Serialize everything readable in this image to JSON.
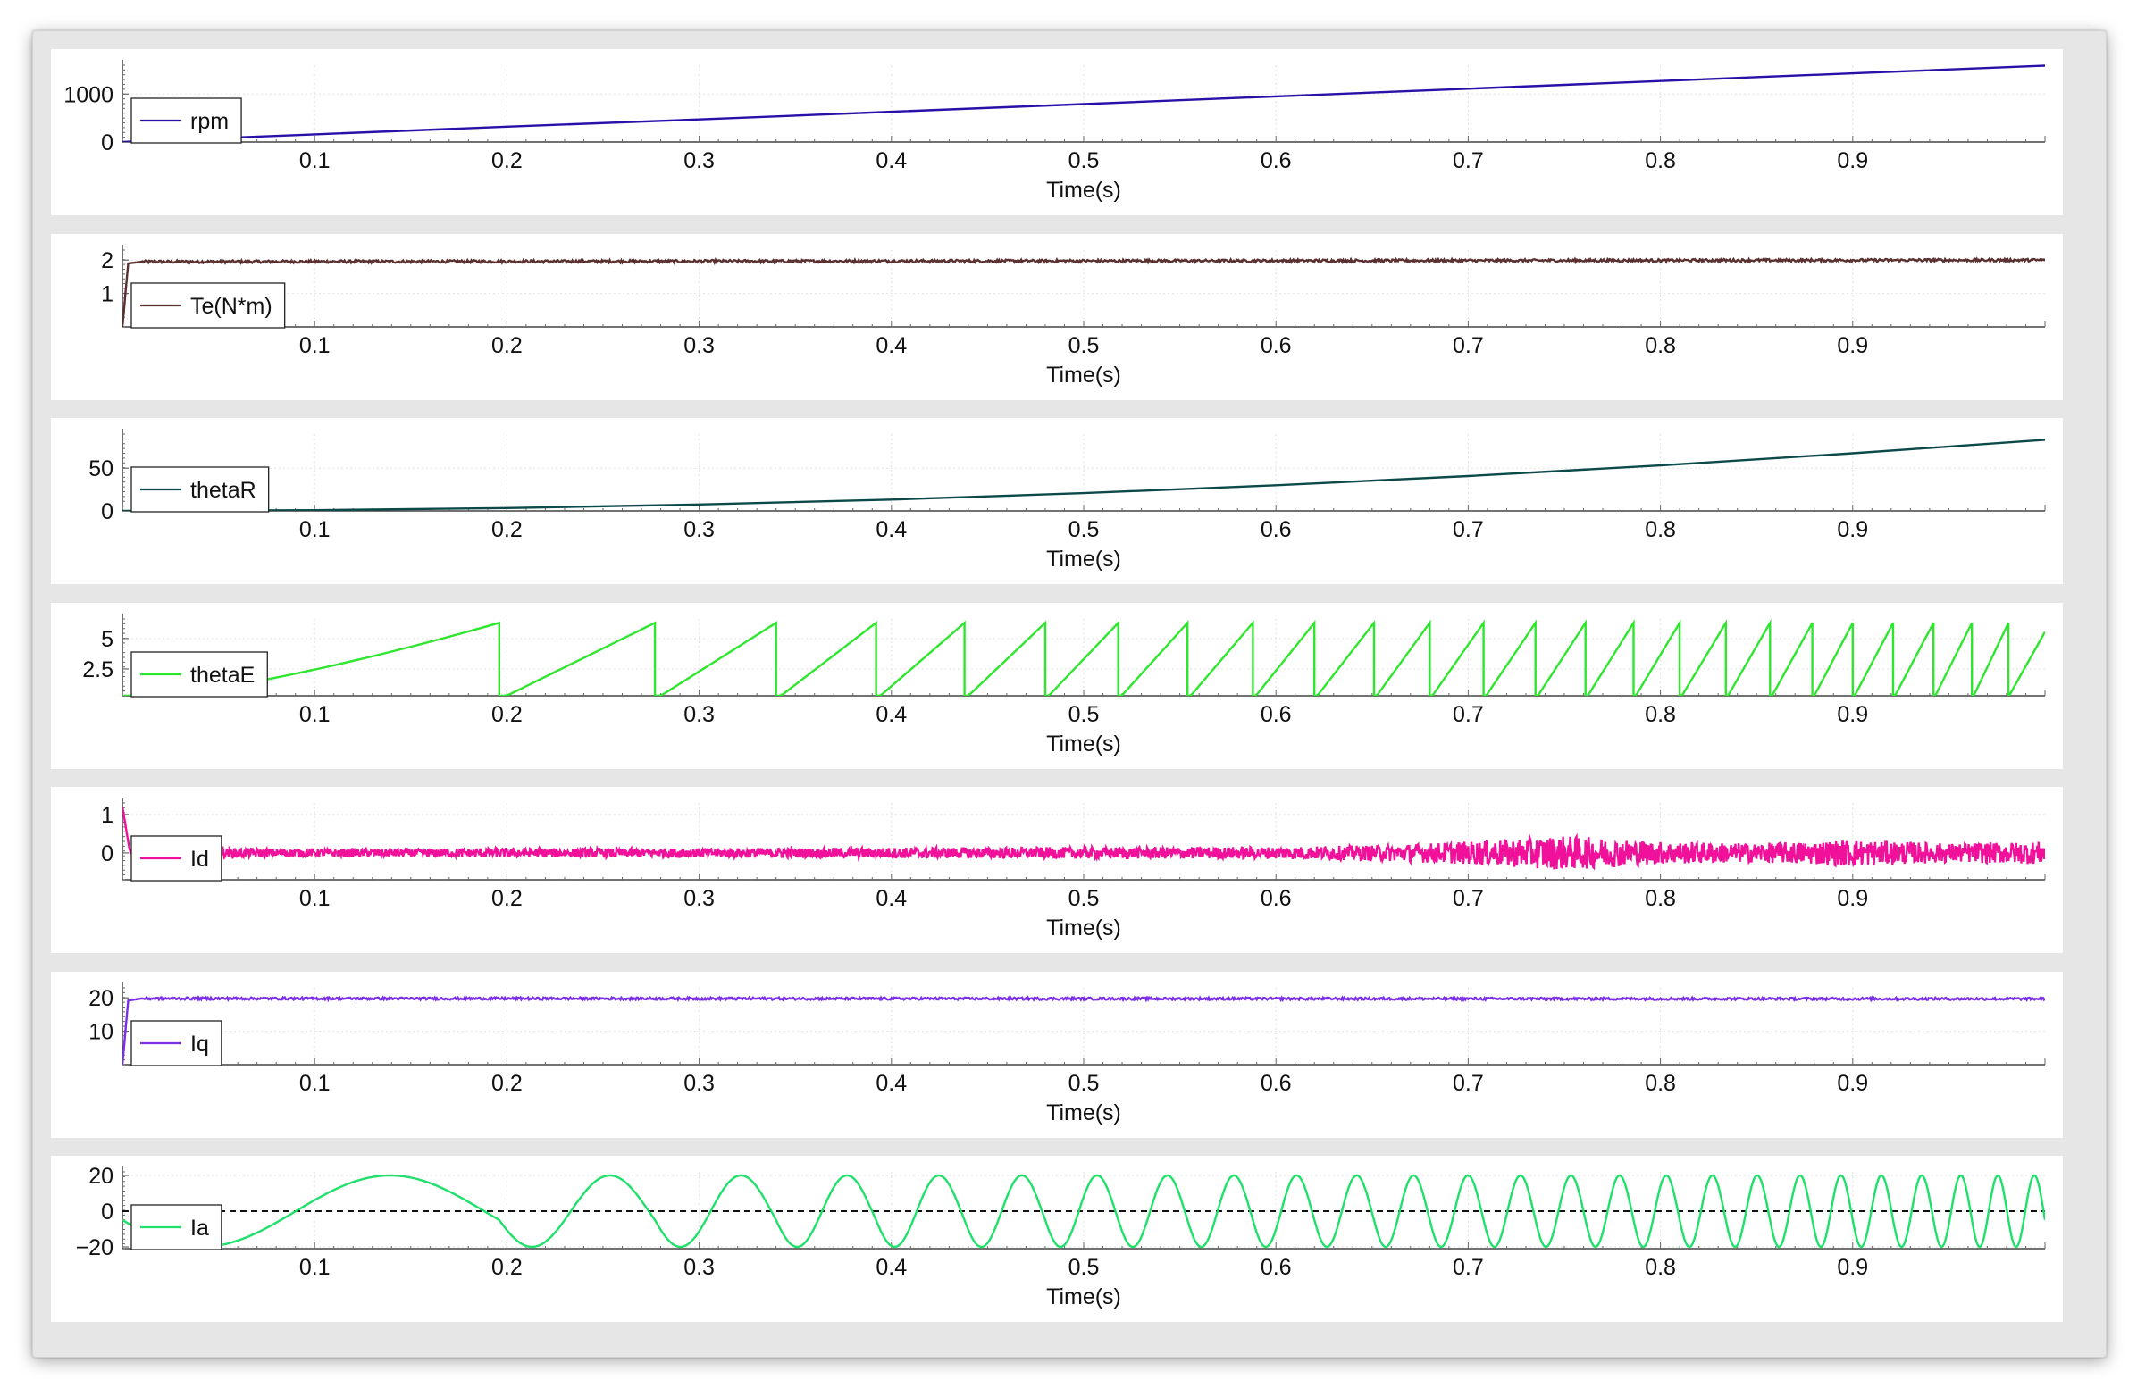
{
  "chart_data": [
    {
      "type": "line",
      "xlabel": "Time(s)",
      "xlim": [
        0,
        1
      ],
      "xticks": [
        0.1,
        0.2,
        0.3,
        0.4,
        0.5,
        0.6,
        0.7,
        0.8,
        0.9
      ],
      "ylim": [
        0,
        1600
      ],
      "yticks": [
        0,
        1000
      ],
      "grid": true,
      "legend": "left",
      "series": [
        {
          "name": "rpm",
          "color": "#2a0fa8",
          "shape": "linear",
          "x": [
            0,
            0.1,
            0.2,
            0.3,
            0.4,
            0.5,
            0.6,
            0.7,
            0.8,
            0.9,
            1.0
          ],
          "y": [
            0,
            160,
            320,
            470,
            630,
            790,
            950,
            1110,
            1270,
            1430,
            1590
          ]
        }
      ]
    },
    {
      "type": "line",
      "xlabel": "Time(s)",
      "xlim": [
        0,
        1
      ],
      "xticks": [
        0.1,
        0.2,
        0.3,
        0.4,
        0.5,
        0.6,
        0.7,
        0.8,
        0.9
      ],
      "ylim": [
        0,
        2.3
      ],
      "yticks": [
        1,
        2
      ],
      "grid": true,
      "legend": "left",
      "series": [
        {
          "name": "Te(N*m)",
          "color": "#5a3030",
          "shape": "step-noisy",
          "x": [
            0,
            0.003,
            0.01,
            1.0
          ],
          "y": [
            0,
            1.9,
            1.95,
            2.0
          ],
          "noise": 0.04
        }
      ]
    },
    {
      "type": "line",
      "xlabel": "Time(s)",
      "xlim": [
        0,
        1
      ],
      "xticks": [
        0.1,
        0.2,
        0.3,
        0.4,
        0.5,
        0.6,
        0.7,
        0.8,
        0.9
      ],
      "ylim": [
        0,
        90
      ],
      "yticks": [
        0,
        50
      ],
      "grid": true,
      "legend": "left",
      "series": [
        {
          "name": "thetaR",
          "color": "#0c4a4a",
          "shape": "linear",
          "x": [
            0,
            0.1,
            0.2,
            0.3,
            0.4,
            0.5,
            0.6,
            0.7,
            0.8,
            0.9,
            1.0
          ],
          "y": [
            0,
            0.8,
            3.3,
            7.5,
            13.3,
            20.8,
            30.0,
            40.8,
            53.3,
            67.5,
            83.3
          ]
        }
      ]
    },
    {
      "type": "line",
      "xlabel": "Time(s)",
      "xlim": [
        0,
        1
      ],
      "xticks": [
        0.1,
        0.2,
        0.3,
        0.4,
        0.5,
        0.6,
        0.7,
        0.8,
        0.9
      ],
      "ylim": [
        0.3,
        6.6
      ],
      "yticks": [
        2.5,
        5
      ],
      "grid": true,
      "legend": "left",
      "series": [
        {
          "name": "thetaE",
          "color": "#2ee62e",
          "shape": "sawtooth",
          "x": [
            0,
            1.0
          ],
          "y": [
            0,
            6.283
          ],
          "period_starts": [
            0,
            0.196,
            0.277,
            0.34,
            0.392,
            0.438,
            0.48,
            0.518,
            0.554,
            0.588,
            0.62,
            0.651,
            0.68,
            0.708,
            0.735,
            0.761,
            0.786,
            0.81,
            0.834,
            0.857,
            0.879,
            0.9,
            0.921,
            0.942,
            0.962,
            0.981,
            1.0
          ]
        }
      ]
    },
    {
      "type": "line",
      "xlabel": "Time(s)",
      "xlim": [
        0,
        1
      ],
      "xticks": [
        0.1,
        0.2,
        0.3,
        0.4,
        0.5,
        0.6,
        0.7,
        0.8,
        0.9
      ],
      "ylim": [
        -0.7,
        1.3
      ],
      "yticks": [
        0,
        1
      ],
      "grid": true,
      "legend": "left",
      "series": [
        {
          "name": "Id",
          "color": "#f0109a",
          "shape": "noise",
          "x": [
            0,
            0.1,
            0.2,
            0.3,
            0.4,
            0.5,
            0.6,
            0.65,
            0.7,
            0.75,
            0.8,
            0.85,
            0.9,
            0.95,
            1.0
          ],
          "y": [
            0,
            0,
            0,
            0,
            0,
            0,
            0,
            0,
            0,
            0,
            0,
            0,
            0,
            0,
            0
          ],
          "amplitude": [
            0.15,
            0.1,
            0.12,
            0.12,
            0.14,
            0.15,
            0.16,
            0.2,
            0.3,
            0.45,
            0.3,
            0.25,
            0.35,
            0.25,
            0.3
          ]
        }
      ]
    },
    {
      "type": "line",
      "xlabel": "Time(s)",
      "xlim": [
        0,
        1
      ],
      "xticks": [
        0.1,
        0.2,
        0.3,
        0.4,
        0.5,
        0.6,
        0.7,
        0.8,
        0.9
      ],
      "ylim": [
        0,
        23
      ],
      "yticks": [
        10,
        20
      ],
      "grid": true,
      "legend": "left",
      "series": [
        {
          "name": "Iq",
          "color": "#7a2ee8",
          "shape": "step-noisy",
          "x": [
            0,
            0.003,
            0.01,
            1.0
          ],
          "y": [
            0,
            19.2,
            19.8,
            19.7
          ],
          "noise": 0.35
        }
      ]
    },
    {
      "type": "line",
      "xlabel": "Time(s)",
      "xlim": [
        0,
        1
      ],
      "xticks": [
        0.1,
        0.2,
        0.3,
        0.4,
        0.5,
        0.6,
        0.7,
        0.8,
        0.9
      ],
      "ylim": [
        -21,
        22
      ],
      "yticks": [
        -20,
        0,
        20
      ],
      "grid": true,
      "legend": "left",
      "zero_line": true,
      "series": [
        {
          "name": "Ia",
          "color": "#1ee06a",
          "shape": "sine",
          "x": [
            0,
            0.196,
            0.277,
            0.34,
            0.392,
            0.438,
            0.48,
            0.518,
            0.554,
            0.588,
            0.62,
            0.651,
            0.68,
            0.708,
            0.735,
            0.761,
            0.786,
            0.81,
            0.834,
            0.857,
            0.879,
            0.9,
            0.921,
            0.942,
            0.962,
            0.981,
            1.0
          ],
          "y": [
            20,
            20,
            20,
            20,
            20,
            20,
            20,
            20,
            20,
            20,
            20,
            20,
            20,
            20,
            20,
            20,
            20,
            20,
            20,
            20,
            20,
            20,
            20,
            20,
            20,
            20,
            20
          ]
        }
      ]
    }
  ]
}
